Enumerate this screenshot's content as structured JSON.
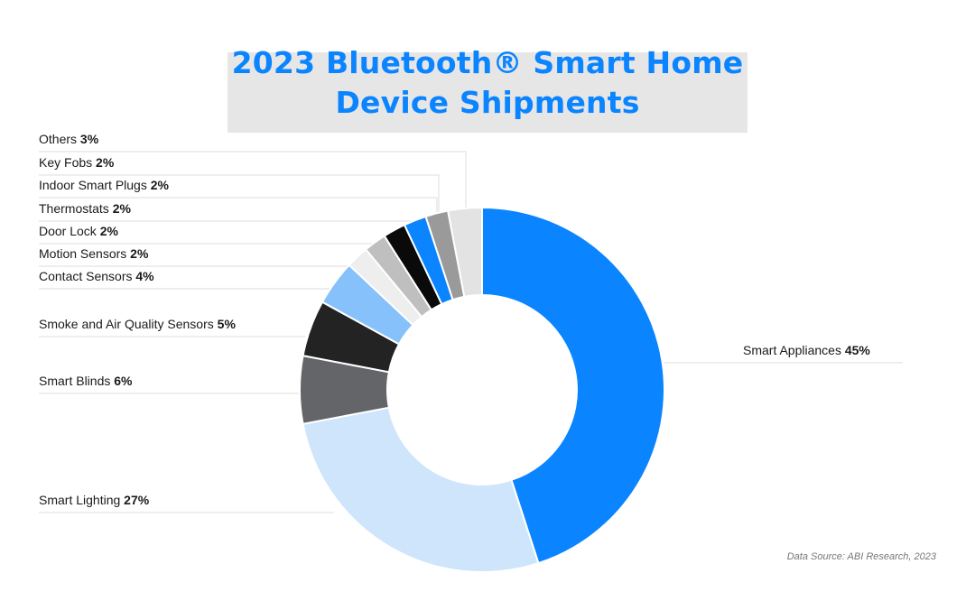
{
  "title": {
    "line1": "2023 Bluetooth® Smart Home",
    "line2": "Device Shipments"
  },
  "source": "Data Source: ABI Research, 2023",
  "colors": {
    "title": "#0a84ff",
    "title_bg": "#e6e6e6"
  },
  "chart_data": {
    "type": "pie",
    "variant": "donut",
    "legend": "leader-line labels",
    "slices": [
      {
        "name": "Smart Appliances",
        "value": 45,
        "label": "45%",
        "color": "#0a84ff"
      },
      {
        "name": "Smart Lighting",
        "value": 27,
        "label": "27%",
        "color": "#cfe5fb"
      },
      {
        "name": "Smart Blinds",
        "value": 6,
        "label": "6%",
        "color": "#636569"
      },
      {
        "name": "Smoke and Air Quality Sensors",
        "value": 5,
        "label": "5%",
        "color": "#232323"
      },
      {
        "name": "Contact Sensors",
        "value": 4,
        "label": "4%",
        "color": "#86c1fb"
      },
      {
        "name": "Motion Sensors",
        "value": 2,
        "label": "2%",
        "color": "#eeeeee"
      },
      {
        "name": "Door Lock",
        "value": 2,
        "label": "2%",
        "color": "#bfbfbf"
      },
      {
        "name": "Thermostats",
        "value": 2,
        "label": "2%",
        "color": "#0a0a0a"
      },
      {
        "name": "Indoor Smart Plugs",
        "value": 2,
        "label": "2%",
        "color": "#0a84ff"
      },
      {
        "name": "Key Fobs",
        "value": 2,
        "label": "2%",
        "color": "#9a9a9a"
      },
      {
        "name": "Others",
        "value": 3,
        "label": "3%",
        "color": "#e3e3e3"
      }
    ]
  }
}
